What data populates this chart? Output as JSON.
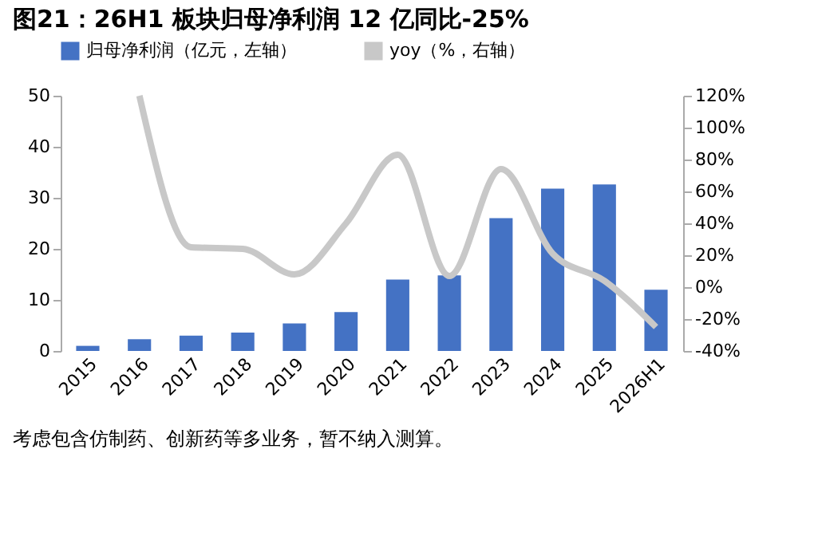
{
  "chart_data": {
    "type": "bar",
    "title": "图21：26H1 板块归母净利润 12 亿同比-25%",
    "categories": [
      "2015",
      "2016",
      "2017",
      "2018",
      "2019",
      "2020",
      "2021",
      "2022",
      "2023",
      "2024",
      "2025",
      "2026H1"
    ],
    "series": [
      {
        "name": "归母净利润（亿元，左轴）",
        "color": "#4472c4",
        "values": [
          1.0,
          2.3,
          3.0,
          3.6,
          5.4,
          7.6,
          14.0,
          14.8,
          26.0,
          31.8,
          32.6,
          12.0
        ]
      },
      {
        "name": "yoy（%，右轴）",
        "type": "line",
        "axis": "y2",
        "color": "#c8c8c8",
        "values": [
          null,
          120,
          25,
          24,
          8,
          40,
          83,
          7,
          74,
          21,
          4,
          -25
        ]
      }
    ],
    "ylim": [
      0,
      50
    ],
    "yticks": [
      0,
      10,
      20,
      30,
      40,
      50
    ],
    "y2lim": [
      -40,
      120
    ],
    "y2ticks": [
      {
        "value": -40,
        "label": "-40%"
      },
      {
        "value": -20,
        "label": "-20%"
      },
      {
        "value": 0,
        "label": "0%"
      },
      {
        "value": 20,
        "label": "20%"
      },
      {
        "value": 40,
        "label": "40%"
      },
      {
        "value": 60,
        "label": "60%"
      },
      {
        "value": 80,
        "label": "80%"
      },
      {
        "value": 100,
        "label": "100%"
      },
      {
        "value": 120,
        "label": "120%"
      }
    ],
    "legend": "top",
    "grid": false,
    "marker": "none",
    "line_style": "solid",
    "annotations": [
      "考虑包含仿制药、创新药等多业务，暂不纳入测算。"
    ]
  }
}
